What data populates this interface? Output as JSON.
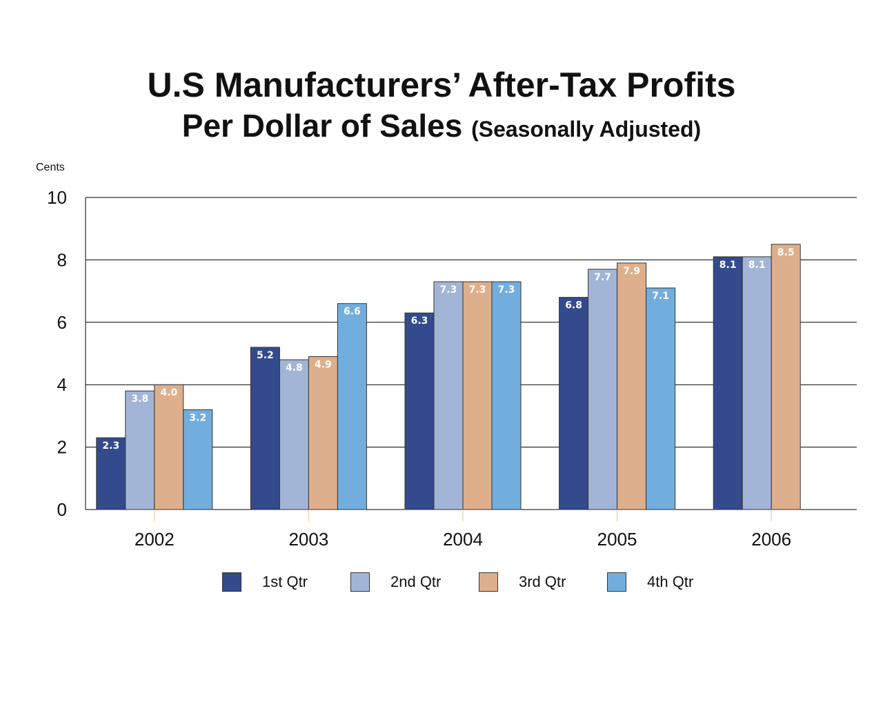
{
  "title": {
    "line1": "U.S Manufacturers’ After-Tax Profits",
    "line2_main": "Per Dollar of Sales",
    "line2_paren": "(Seasonally Adjusted)"
  },
  "chart_data": {
    "type": "bar",
    "title": "U.S Manufacturers’ After-Tax Profits Per Dollar of Sales (Seasonally Adjusted)",
    "ylabel": "Cents",
    "xlabel": "",
    "ylim": [
      0,
      10
    ],
    "yticks": [
      0,
      2,
      4,
      6,
      8,
      10
    ],
    "grid": true,
    "legend_placement": "bottom",
    "categories": [
      "2002",
      "2003",
      "2004",
      "2005",
      "2006"
    ],
    "series": [
      {
        "name": "1st Qtr",
        "color": "#334a8c",
        "values": [
          2.3,
          5.2,
          6.3,
          6.8,
          8.1
        ],
        "labels": [
          "2.3",
          "5.2",
          "6.3",
          "6.8",
          "8.1"
        ]
      },
      {
        "name": "2nd Qtr",
        "color": "#a3b5d6",
        "values": [
          3.8,
          4.8,
          7.3,
          7.7,
          8.1
        ],
        "labels": [
          "3.8",
          "4.8",
          "7.3",
          "7.7",
          "8.1"
        ]
      },
      {
        "name": "3rd Qtr",
        "color": "#deaf8c",
        "values": [
          4.0,
          4.9,
          7.3,
          7.9,
          8.5
        ],
        "labels": [
          "4.0",
          "4.9",
          "7.3",
          "7.9",
          "8.5"
        ]
      },
      {
        "name": "4th Qtr",
        "color": "#72aedd",
        "values": [
          3.2,
          6.6,
          7.3,
          7.1,
          null
        ],
        "labels": [
          "3.2",
          "6.6",
          "7.3",
          "7.1",
          null
        ]
      }
    ]
  }
}
